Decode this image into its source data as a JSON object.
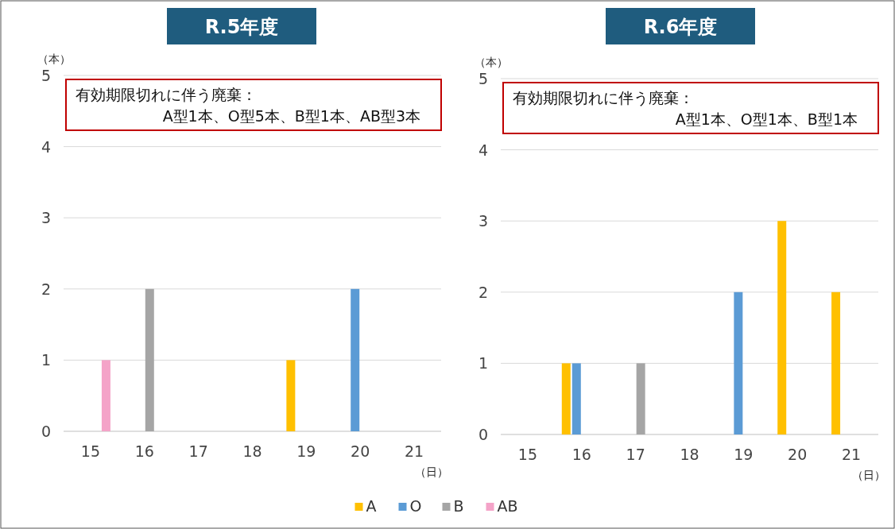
{
  "chart_data": [
    {
      "type": "bar",
      "title": "R.5年度",
      "ylabel": "（本）",
      "xlabel": "（日）",
      "categories": [
        "15",
        "16",
        "17",
        "18",
        "19",
        "20",
        "21"
      ],
      "series": [
        {
          "name": "A",
          "color": "#ffc000",
          "values": [
            0,
            0,
            0,
            0,
            1,
            0,
            0
          ]
        },
        {
          "name": "O",
          "color": "#5b9bd5",
          "values": [
            0,
            0,
            0,
            0,
            0,
            2,
            0
          ]
        },
        {
          "name": "B",
          "color": "#a5a5a5",
          "values": [
            0,
            2,
            0,
            0,
            0,
            0,
            0
          ]
        },
        {
          "name": "AB",
          "color": "#f4a3c8",
          "values": [
            1,
            0,
            0,
            0,
            0,
            0,
            0
          ]
        }
      ],
      "ylim": [
        0,
        5
      ],
      "yticks": [
        0,
        1,
        2,
        3,
        4,
        5
      ],
      "grid": "y",
      "legend": "bottom",
      "annotations": [
        "有効期限切れに伴う廃棄：\nA型1本、O型5本、B型1本、AB型3本"
      ]
    },
    {
      "type": "bar",
      "title": "R.6年度",
      "ylabel": "（本）",
      "xlabel": "（日）",
      "categories": [
        "15",
        "16",
        "17",
        "18",
        "19",
        "20",
        "21"
      ],
      "series": [
        {
          "color": "#ffc000",
          "values": [
            0,
            1,
            0,
            0,
            0,
            3,
            2
          ]
        },
        {
          "color": "#5b9bd5",
          "values": [
            0,
            1,
            0,
            0,
            2,
            0,
            0
          ]
        },
        {
          "color": "#a5a5a5",
          "values": [
            0,
            0,
            1,
            0,
            0,
            0,
            0
          ]
        },
        {
          "color": "#f4a3c8",
          "values": [
            0,
            0,
            0,
            0,
            0,
            0,
            0
          ]
        }
      ],
      "ylim": [
        0,
        5
      ],
      "yticks": [
        0,
        1,
        2,
        3,
        4,
        5
      ],
      "grid": "y",
      "annotations": [
        "有効期限切れに伴う廃棄：\nA型1本、O型1本、B型1本"
      ]
    }
  ]
}
